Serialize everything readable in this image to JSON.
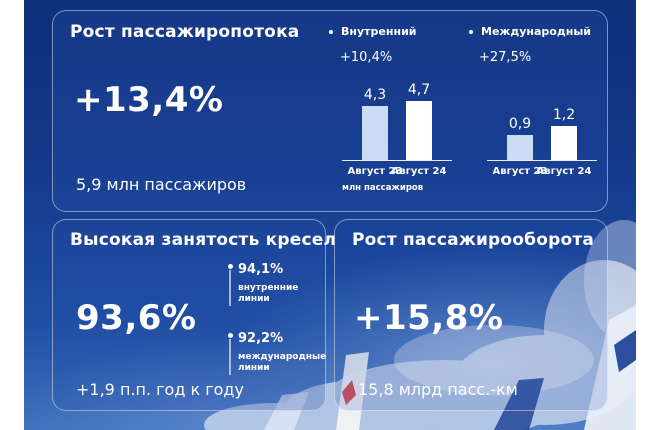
{
  "colors": {
    "background": "#143a8c",
    "bar_prev": "#c9dcf3",
    "bar_curr": "#ffffff",
    "text": "#ffffff"
  },
  "cards": {
    "passenger_growth": {
      "title": "Рост пассажиропотока",
      "value": "+13,4%",
      "subtitle": "5,9 млн пассажиров"
    },
    "load_factor": {
      "title": "Высокая занятость кресел",
      "value": "93,6%",
      "subtitle": "+1,9 п.п. год к году",
      "details": [
        {
          "value": "94,1%",
          "label_line1": "внутренние",
          "label_line2": "линии"
        },
        {
          "value": "92,2%",
          "label_line1": "международные",
          "label_line2": "линии"
        }
      ]
    },
    "rpk_growth": {
      "title": "Рост пассажирооборота",
      "value": "+15,8%",
      "subtitle": "15,8 млрд пасс.-км"
    }
  },
  "unit_note": "млн пассажиров",
  "chart_data": [
    {
      "type": "bar",
      "title": "Внутренний",
      "subtitle": "+10,4%",
      "categories": [
        "Август 23",
        "Август 24"
      ],
      "values": [
        4.3,
        4.7
      ],
      "value_labels": [
        "4,3",
        "4,7"
      ],
      "ylabel": "",
      "ylim": [
        0,
        5.6
      ],
      "grid": false,
      "unit": "млн пассажиров"
    },
    {
      "type": "bar",
      "title": "Международный",
      "subtitle": "+27,5%",
      "categories": [
        "Август 23",
        "Август 24"
      ],
      "values": [
        0.9,
        1.2
      ],
      "value_labels": [
        "0,9",
        "1,2"
      ],
      "ylabel": "",
      "ylim": [
        0,
        2.5
      ],
      "grid": false
    }
  ]
}
